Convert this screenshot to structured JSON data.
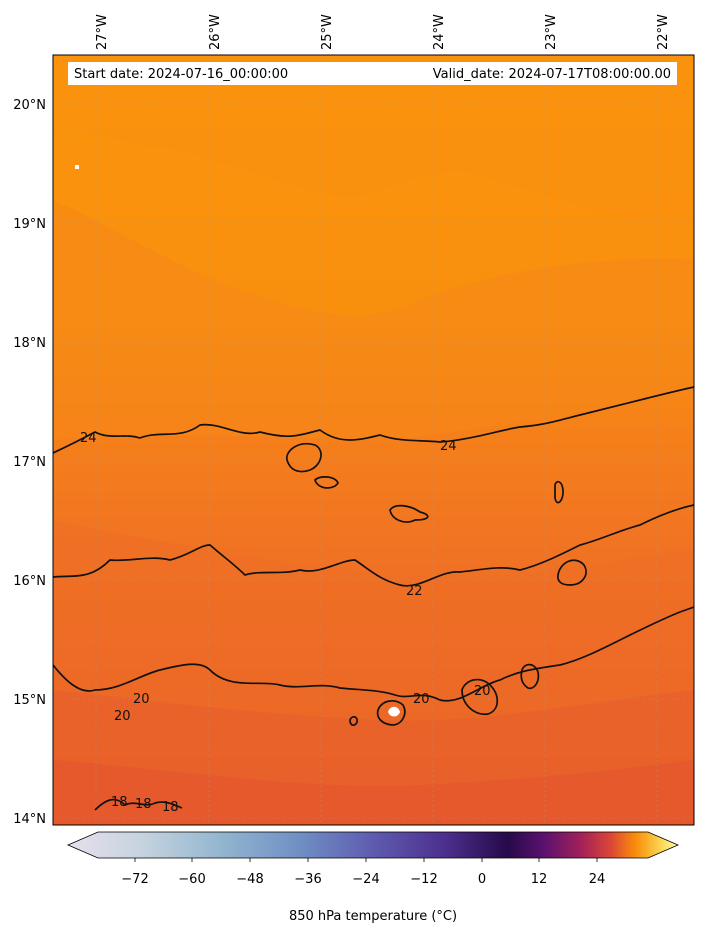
{
  "info": {
    "start_date": "Start date: 2024-07-16_00:00:00",
    "valid_date": "Valid_date: 2024-07-17T08:00:00.00"
  },
  "map": {
    "lon_ticks": [
      "27°W",
      "26°W",
      "25°W",
      "24°W",
      "23°W",
      "22°W"
    ],
    "lat_ticks": [
      "20°N",
      "19°N",
      "18°N",
      "17°N",
      "16°N",
      "15°N",
      "14°N"
    ],
    "extent": {
      "lon_min": -27.4,
      "lon_max": -21.8,
      "lat_min": 13.95,
      "lat_max": 20.4
    },
    "gridlines": true
  },
  "contours": {
    "labels": [
      "24",
      "24",
      "22",
      "20",
      "20",
      "20",
      "20",
      "18",
      "18",
      "18"
    ]
  },
  "colorbar": {
    "label": "850 hPa temperature (°C)",
    "ticks": [
      "−72",
      "−60",
      "−48",
      "−36",
      "−24",
      "−12",
      "0",
      "12",
      "24"
    ],
    "colormap": "inferno-like with light blue negative side",
    "extend": "both"
  },
  "field_colors": {
    "warm_top": "#fb9a0c",
    "mid": "#f57e1c",
    "lower": "#ee6a27",
    "bottom": "#e4562f"
  }
}
